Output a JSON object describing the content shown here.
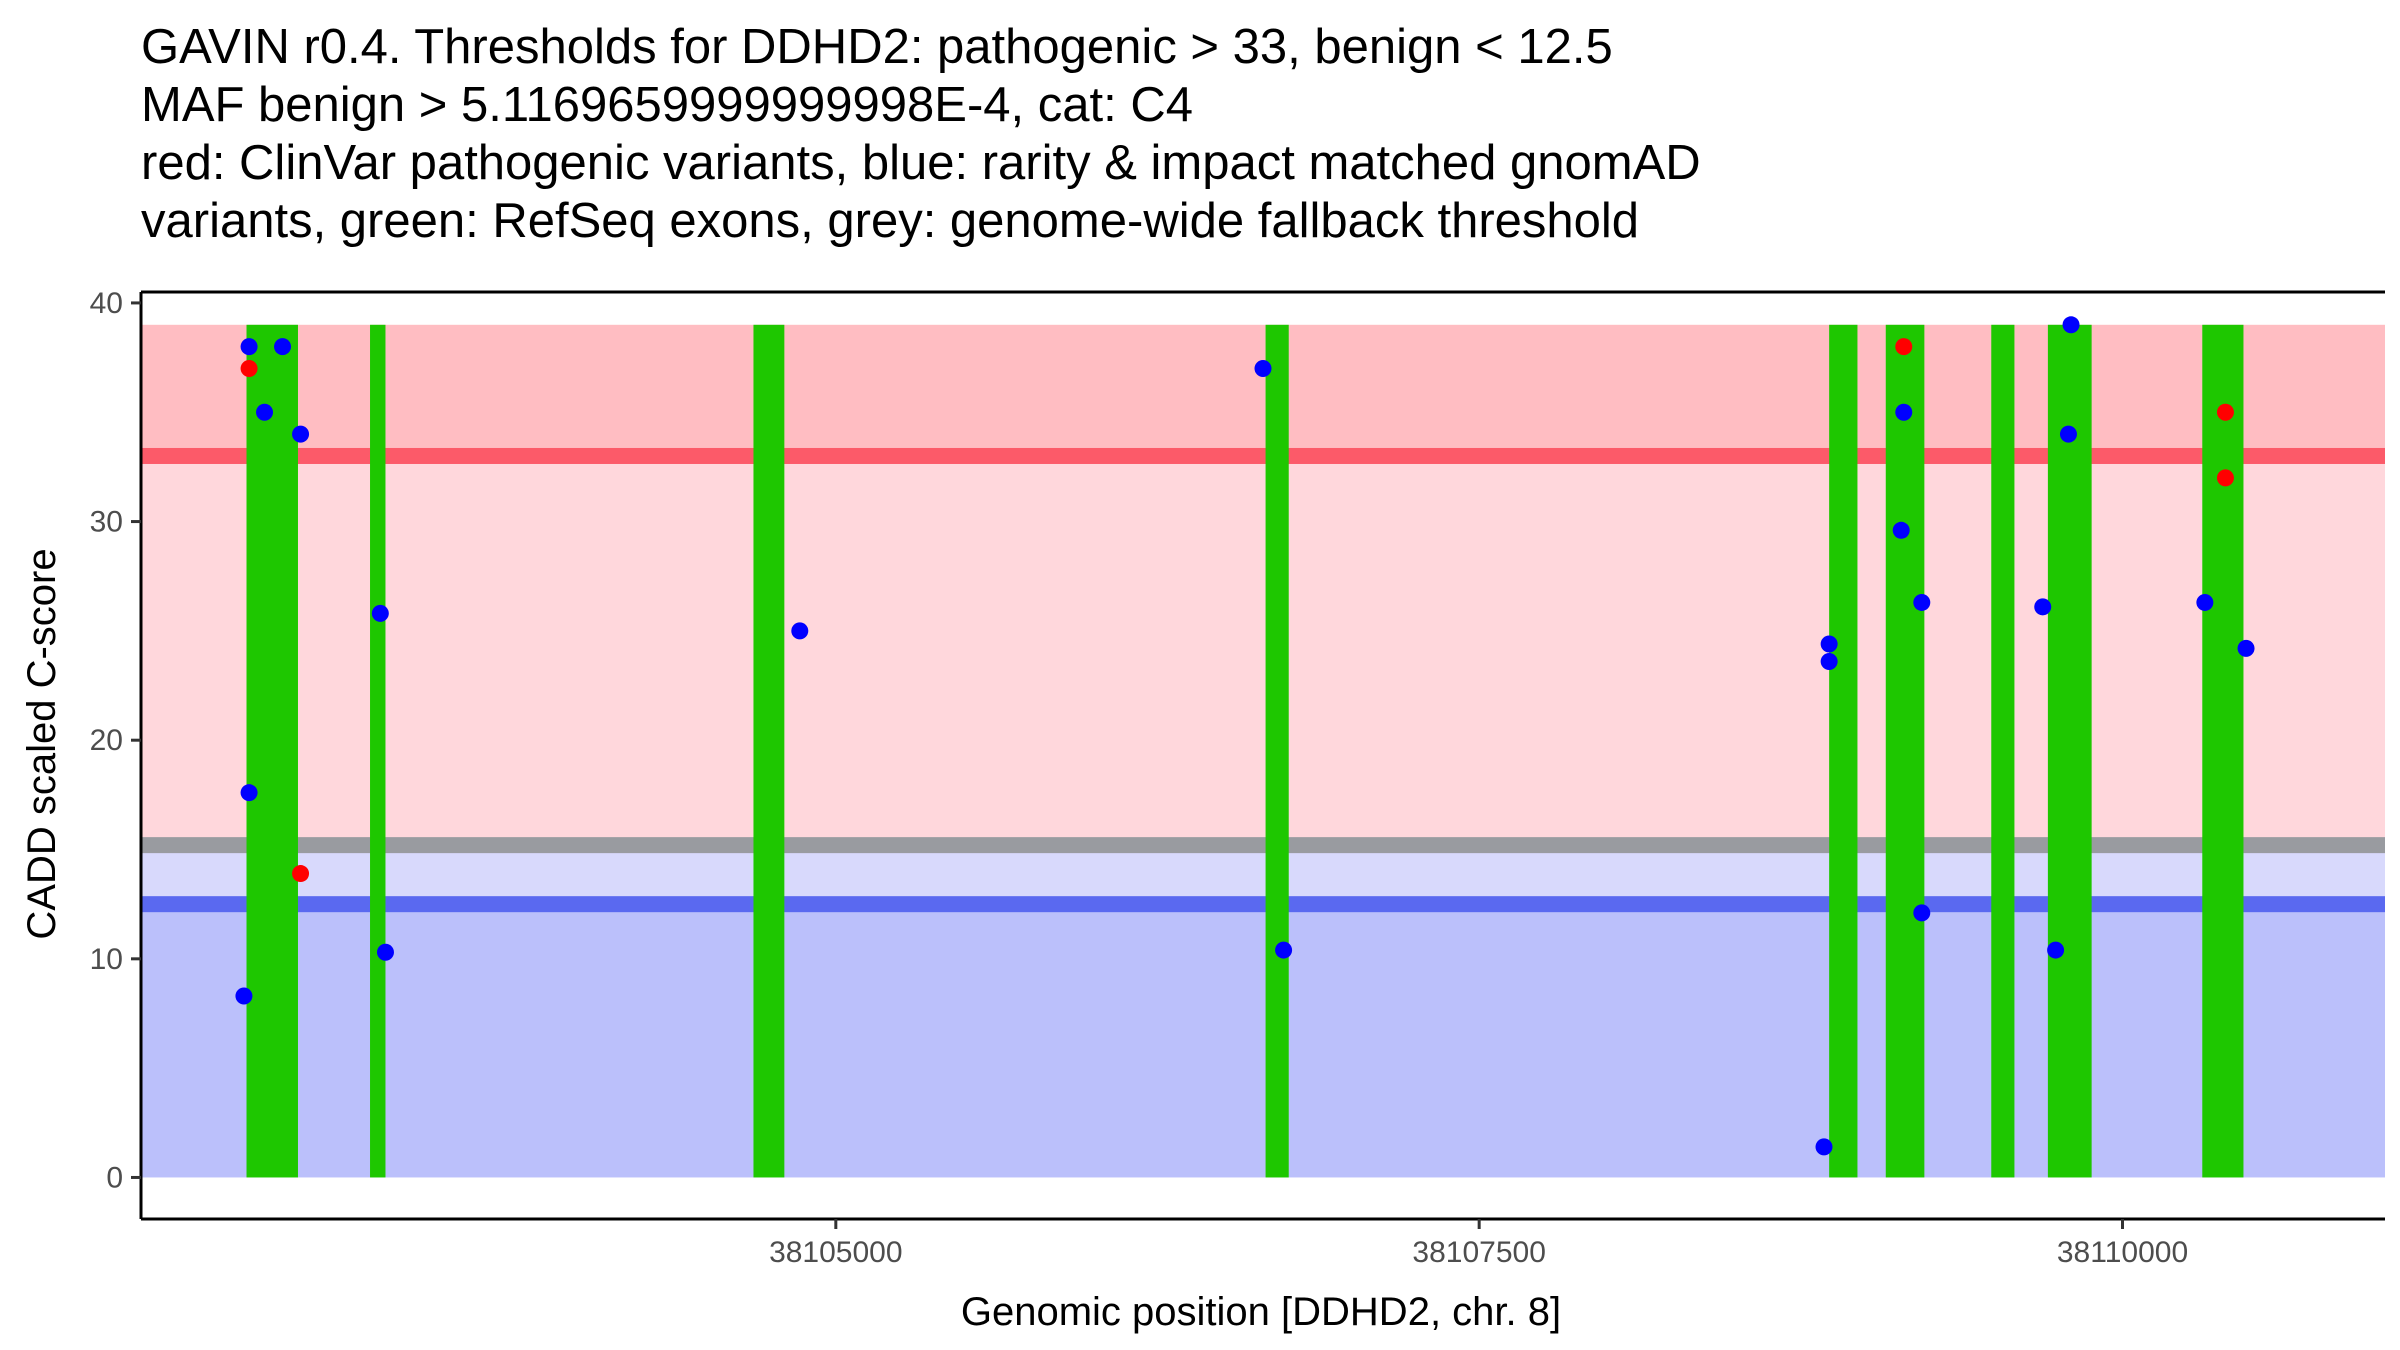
{
  "chart_data": {
    "type": "scatter",
    "title_lines": [
      "GAVIN r0.4. Thresholds for DDHD2: pathogenic > 33, benign < 12.5",
      "MAF benign > 5.1169659999999998E-4, cat: C4",
      "red: ClinVar pathogenic variants, blue: rarity & impact matched gnomAD",
      "variants, green: RefSeq exons, grey: genome-wide fallback threshold"
    ],
    "xlabel": "Genomic position [DDHD2, chr. 8]",
    "ylabel": "CADD scaled C-score",
    "xlim": [
      38102300,
      38111020
    ],
    "ylim": [
      -1.9,
      40.5
    ],
    "xticks": [
      38105000,
      38107500,
      38110000
    ],
    "xtick_labels": [
      "38105000",
      "38107500",
      "38110000"
    ],
    "yticks": [
      0,
      10,
      20,
      30,
      40
    ],
    "ytick_labels": [
      "0",
      "10",
      "20",
      "30",
      "40"
    ],
    "grid": false,
    "zones": [
      {
        "name": "pathogenic-zone-upper",
        "y0": 33,
        "y1": 39,
        "color": "#ffbdc2"
      },
      {
        "name": "pathogenic-zone-lower",
        "y0": 15,
        "y1": 33,
        "color": "#ffd7dc"
      },
      {
        "name": "fallback-zone",
        "y0": 12.5,
        "y1": 15,
        "color": "#d8d9fc"
      },
      {
        "name": "benign-zone",
        "y0": 0,
        "y1": 12.5,
        "color": "#bbc0fb"
      }
    ],
    "thresholds": [
      {
        "name": "pathogenic-threshold-line",
        "y": 33,
        "color": "#fc5a69"
      },
      {
        "name": "fallback-threshold-line",
        "y": 15.2,
        "color": "#999ba0"
      },
      {
        "name": "benign-threshold-line",
        "y": 12.5,
        "color": "#5a69f0"
      }
    ],
    "exons": [
      {
        "start": 38102710,
        "end": 38102910
      },
      {
        "start": 38103190,
        "end": 38103250
      },
      {
        "start": 38104680,
        "end": 38104800
      },
      {
        "start": 38106670,
        "end": 38106760
      },
      {
        "start": 38108860,
        "end": 38108970
      },
      {
        "start": 38109080,
        "end": 38109230
      },
      {
        "start": 38109490,
        "end": 38109580
      },
      {
        "start": 38109710,
        "end": 38109880
      },
      {
        "start": 38110310,
        "end": 38110470
      }
    ],
    "series": [
      {
        "name": "ClinVar pathogenic",
        "color": "#ff0000",
        "points": [
          {
            "x": 38102720,
            "y": 37
          },
          {
            "x": 38102920,
            "y": 13.9
          },
          {
            "x": 38109150,
            "y": 38
          },
          {
            "x": 38110400,
            "y": 35
          },
          {
            "x": 38110400,
            "y": 32
          }
        ]
      },
      {
        "name": "gnomAD matched",
        "color": "#0000ff",
        "points": [
          {
            "x": 38102720,
            "y": 38
          },
          {
            "x": 38102850,
            "y": 38
          },
          {
            "x": 38102780,
            "y": 35
          },
          {
            "x": 38102920,
            "y": 34
          },
          {
            "x": 38102720,
            "y": 17.6
          },
          {
            "x": 38102700,
            "y": 8.3
          },
          {
            "x": 38103230,
            "y": 25.8
          },
          {
            "x": 38103250,
            "y": 10.3
          },
          {
            "x": 38104860,
            "y": 25
          },
          {
            "x": 38106660,
            "y": 37
          },
          {
            "x": 38106740,
            "y": 10.4
          },
          {
            "x": 38108860,
            "y": 24.4
          },
          {
            "x": 38108860,
            "y": 23.6
          },
          {
            "x": 38108840,
            "y": 1.4
          },
          {
            "x": 38109150,
            "y": 35
          },
          {
            "x": 38109140,
            "y": 29.6
          },
          {
            "x": 38109220,
            "y": 26.3
          },
          {
            "x": 38109220,
            "y": 12.1
          },
          {
            "x": 38109800,
            "y": 39
          },
          {
            "x": 38109790,
            "y": 34
          },
          {
            "x": 38109690,
            "y": 26.1
          },
          {
            "x": 38109740,
            "y": 10.4
          },
          {
            "x": 38110320,
            "y": 26.3
          },
          {
            "x": 38110480,
            "y": 24.2
          }
        ]
      }
    ]
  }
}
